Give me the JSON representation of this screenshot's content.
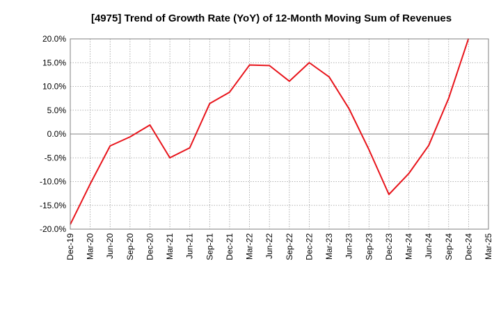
{
  "chart_data": {
    "type": "line",
    "title": "[4975]  Trend of Growth Rate (YoY) of 12-Month Moving Sum of Revenues",
    "xlabel": "",
    "ylabel": "",
    "categories": [
      "Dec-19",
      "Mar-20",
      "Jun-20",
      "Sep-20",
      "Dec-20",
      "Mar-21",
      "Jun-21",
      "Sep-21",
      "Dec-21",
      "Mar-22",
      "Jun-22",
      "Sep-22",
      "Dec-22",
      "Mar-23",
      "Jun-23",
      "Sep-23",
      "Dec-23",
      "Mar-24",
      "Jun-24",
      "Sep-24",
      "Dec-24",
      "Mar-25"
    ],
    "series": [
      {
        "color": "#e8141b",
        "values": [
          -19.0,
          -10.5,
          -2.5,
          -0.6,
          1.9,
          -5.0,
          -2.9,
          6.4,
          8.8,
          14.5,
          14.4,
          11.1,
          15.0,
          12.0,
          5.3,
          -3.3,
          -12.7,
          -8.3,
          -2.4,
          7.5,
          20.1,
          null
        ]
      }
    ],
    "ylim": [
      -20,
      20
    ],
    "yticks": [
      20,
      15,
      10,
      5,
      0,
      -5,
      -10,
      -15,
      -20
    ],
    "ytick_labels": [
      "20.0%",
      "15.0%",
      "10.0%",
      "5.0%",
      "0.0%",
      "-5.0%",
      "-10.0%",
      "-15.0%",
      "-20.0%"
    ],
    "grid": true,
    "legend": "none"
  }
}
